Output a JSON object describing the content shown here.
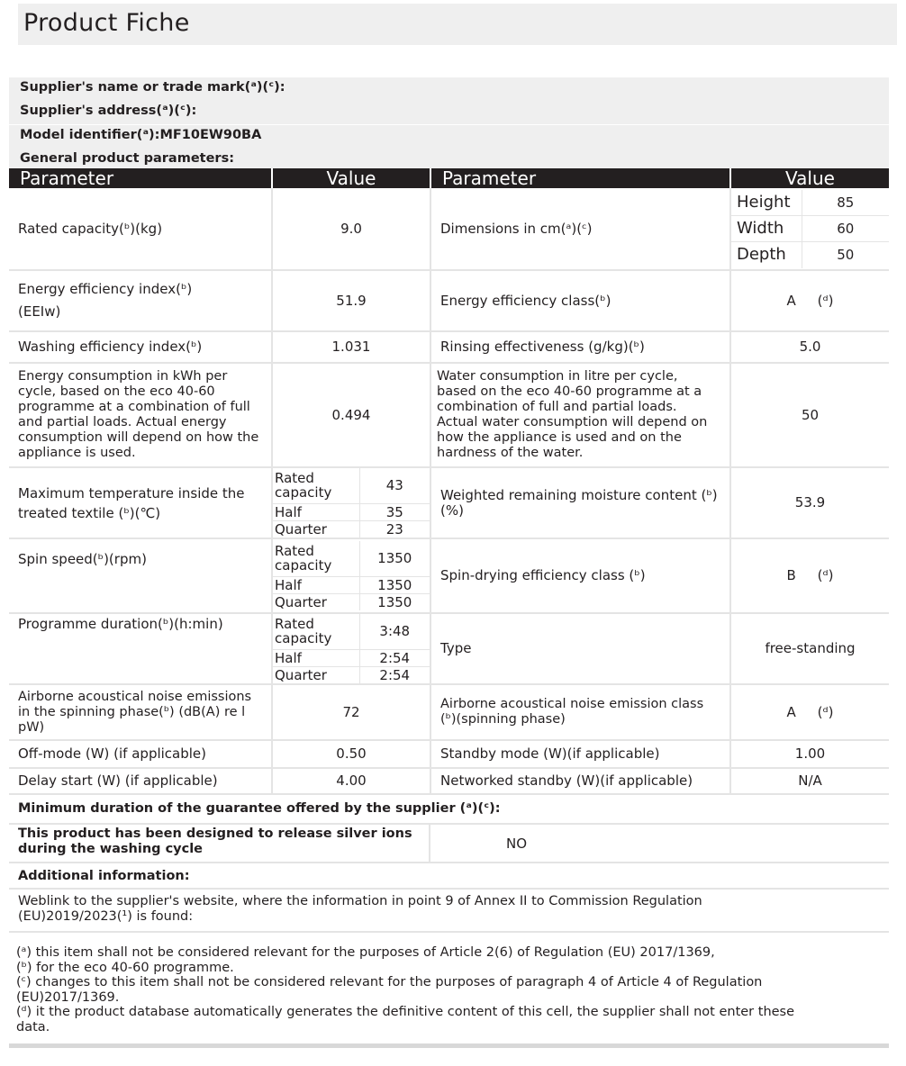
{
  "title": "Product Fiche",
  "supplier_name": "Supplier's name or trade mark(ᵃ)(ᶜ):",
  "supplier_address": "Supplier's address(ᵃ)(ᶜ):",
  "model_label": "Model identifier(ᵃ):",
  "model_value": "MF10EW90BA",
  "general": "General product parameters:",
  "headers": [
    "Parameter",
    "Value",
    "Parameter",
    "Value"
  ],
  "rows": {
    "capacity": {
      "label": "Rated capacity(ᵇ)(kg)",
      "value": "9.0",
      "label2": "Dimensions in cm(ᵃ)(ᶜ)",
      "dims": [
        {
          "k": "Height",
          "v": "85"
        },
        {
          "k": "Width",
          "v": "60"
        },
        {
          "k": "Depth",
          "v": "50"
        }
      ]
    },
    "eei": {
      "label": "Energy efficiency index(ᵇ)",
      "label_b": "(EEIw)",
      "value": "51.9",
      "label2": "Energy efficiency class(ᵇ)",
      "value2": "A",
      "note2": "(ᵈ)"
    },
    "wei": {
      "label": "Washing efficiency index(ᵇ)",
      "value": "1.031",
      "label2": "Rinsing effectiveness (g/kg)(ᵇ)",
      "value2": "5.0"
    },
    "energy": {
      "label": "Energy consumption in kWh per cycle, based on the eco 40-60 programme at a combination of full and partial loads. Actual energy consumption will depend on how the appliance is used.",
      "value": "0.494",
      "label2": "Water consumption in litre per cycle, based on the eco 40-60 programme at a combination of full and partial loads. Actual water consumption will depend on how the appliance is used and on the hardness of the water.",
      "value2": "50"
    },
    "temp": {
      "label": "Maximum temperature inside the treated textile (ᵇ)(℃)",
      "sub": [
        {
          "k": "Rated capacity",
          "v": "43"
        },
        {
          "k": "Half",
          "v": "35"
        },
        {
          "k": "Quarter",
          "v": "23"
        }
      ],
      "label2": "Weighted remaining moisture content (ᵇ)(%)",
      "value2": "53.9"
    },
    "spin": {
      "label": "Spin speed(ᵇ)(rpm)",
      "sub": [
        {
          "k": "Rated capacity",
          "v": "1350"
        },
        {
          "k": "Half",
          "v": "1350"
        },
        {
          "k": "Quarter",
          "v": "1350"
        }
      ],
      "label2": "Spin-drying efficiency class (ᵇ)",
      "value2": "B",
      "note2": "(ᵈ)"
    },
    "duration": {
      "label": "Programme duration(ᵇ)(h:min)",
      "sub": [
        {
          "k": "Rated capacity",
          "v": "3:48"
        },
        {
          "k": "Half",
          "v": "2:54"
        },
        {
          "k": "Quarter",
          "v": "2:54"
        }
      ],
      "label2": "Type",
      "value2": "free-standing"
    },
    "noise": {
      "label": "Airborne acoustical noise emissions in the spinning phase(ᵇ) (dB(A) re l pW)",
      "value": "72",
      "label2": "Airborne acoustical noise emission class (ᵇ)(spinning phase)",
      "value2": "A",
      "note2": "(ᵈ)"
    },
    "off": {
      "label": "Off-mode (W) (if applicable)",
      "value": "0.50",
      "label2": "Standby mode (W)(if applicable)",
      "value2": "1.00"
    },
    "delay": {
      "label": "Delay start (W) (if applicable)",
      "value": "4.00",
      "label2": "Networked standby (W)(if applicable)",
      "value2": "N/A"
    }
  },
  "guarantee": "Minimum duration of the guarantee offered by the supplier (ᵃ)(ᶜ):",
  "silver": {
    "label": "This product has been designed to release silver ions during the washing cycle",
    "value": "NO"
  },
  "additional": "Additional information:",
  "weblink": "Weblink to the supplier's website, where the information in point 9 of Annex II to Commission Regulation (EU)2019/2023(¹) is found:",
  "footnotes": [
    "(ᵃ) this item shall not be considered relevant for the purposes of Article 2(6) of Regulation (EU) 2017/1369,",
    "(ᵇ) for the eco 40-60 programme.",
    "(ᶜ) changes to this item shall not be considered relevant for the purposes of paragraph 4 of Article 4 of Regulation (EU)2017/1369.",
    "(ᵈ) it the product database automatically generates the definitive content of this cell, the supplier shall not enter these data."
  ]
}
